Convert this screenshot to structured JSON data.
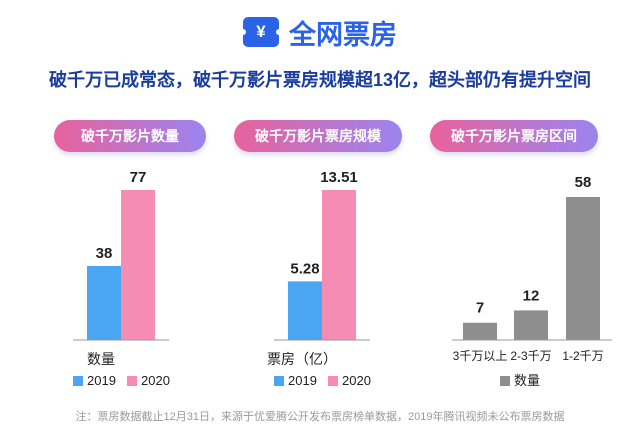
{
  "header": {
    "icon_text": "¥",
    "title": "全网票房"
  },
  "subtitle": "破千万已成常态，破千万影片票房规模超13亿，超头部仍有提升空间",
  "note": "注：票房数据截止12月31日，来源于优爱腾公开发布票房榜单数据，2019年腾讯视频未公布票房数据",
  "colors": {
    "c2019": "#4aa5f3",
    "c2020": "#f48cb4",
    "grey": "#8e8e8e",
    "title_blue": "#2b63e8",
    "subtitle_blue": "#1a3c9e"
  },
  "chart_data": [
    {
      "type": "bar",
      "title": "破千万影片数量",
      "categories": [
        "数量"
      ],
      "series": [
        {
          "name": "2019",
          "values": [
            38
          ]
        },
        {
          "name": "2020",
          "values": [
            77
          ]
        }
      ],
      "value_labels": [
        "38",
        "77"
      ],
      "legend": "bottom",
      "ylim": [
        0,
        77
      ]
    },
    {
      "type": "bar",
      "title": "破千万影片票房规模",
      "categories": [
        "票房（亿）"
      ],
      "series": [
        {
          "name": "2019",
          "values": [
            5.28
          ]
        },
        {
          "name": "2020",
          "values": [
            13.51
          ]
        }
      ],
      "value_labels": [
        "5.28",
        "13.51"
      ],
      "legend": "bottom",
      "ylim": [
        0,
        13.51
      ]
    },
    {
      "type": "bar",
      "title": "破千万影片票房区间",
      "categories": [
        "3千万以上",
        "2-3千万",
        "1-2千万"
      ],
      "series": [
        {
          "name": "数量",
          "values": [
            7,
            12,
            58
          ]
        }
      ],
      "value_labels": [
        "7",
        "12",
        "58"
      ],
      "legend": "bottom",
      "ylim": [
        0,
        58
      ]
    }
  ]
}
